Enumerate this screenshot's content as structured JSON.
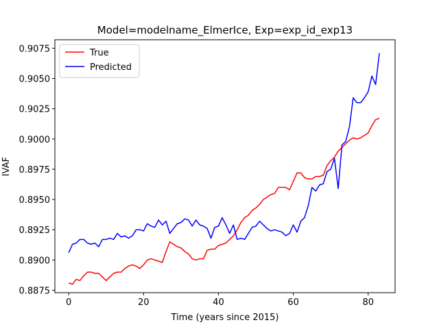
{
  "chart_data": {
    "type": "line",
    "title": "Model=modelname_ElmerIce, Exp=exp_id_exp13",
    "xlabel": "Time (years since 2015)",
    "ylabel": "IVAF",
    "xlim": [
      -3.7,
      87.2
    ],
    "ylim": [
      0.8873,
      0.9082
    ],
    "xticks": [
      0,
      20,
      40,
      60,
      80
    ],
    "xtick_labels": [
      "0",
      "20",
      "40",
      "60",
      "80"
    ],
    "yticks": [
      0.8875,
      0.89,
      0.8925,
      0.895,
      0.8975,
      0.9,
      0.9025,
      0.905,
      0.9075
    ],
    "ytick_labels": [
      "0.8875",
      "0.8900",
      "0.8925",
      "0.8950",
      "0.8975",
      "0.9000",
      "0.9025",
      "0.9050",
      "0.9075"
    ],
    "grid": false,
    "legend_position": "top-left",
    "series": [
      {
        "name": "True",
        "color": "#ff0000",
        "x": [
          0,
          1,
          2,
          3,
          4,
          5,
          6,
          7,
          8,
          9,
          10,
          11,
          12,
          13,
          14,
          15,
          16,
          17,
          18,
          19,
          20,
          21,
          22,
          23,
          24,
          25,
          26,
          27,
          28,
          29,
          30,
          31,
          32,
          33,
          34,
          35,
          36,
          37,
          38,
          39,
          40,
          41,
          42,
          43,
          44,
          45,
          46,
          47,
          48,
          49,
          50,
          51,
          52,
          53,
          54,
          55,
          56,
          57,
          58,
          59,
          60,
          61,
          62,
          63,
          64,
          65,
          66,
          67,
          68,
          69,
          70,
          71,
          72,
          73,
          74,
          75,
          76,
          77,
          78,
          79,
          80,
          81,
          82,
          83
        ],
        "y": [
          0.8881,
          0.888,
          0.8884,
          0.8883,
          0.8887,
          0.889,
          0.889,
          0.8889,
          0.8889,
          0.8886,
          0.8883,
          0.8886,
          0.8889,
          0.889,
          0.889,
          0.8893,
          0.8895,
          0.8896,
          0.8895,
          0.8893,
          0.8896,
          0.89,
          0.8901,
          0.89,
          0.8899,
          0.8898,
          0.8907,
          0.8915,
          0.8913,
          0.8911,
          0.891,
          0.8907,
          0.8905,
          0.8901,
          0.89,
          0.8901,
          0.8901,
          0.8908,
          0.8909,
          0.8909,
          0.8912,
          0.8913,
          0.8914,
          0.8917,
          0.892,
          0.8925,
          0.8931,
          0.8935,
          0.8937,
          0.8941,
          0.8943,
          0.8946,
          0.895,
          0.8952,
          0.8954,
          0.8955,
          0.896,
          0.896,
          0.896,
          0.8958,
          0.8965,
          0.8972,
          0.8972,
          0.8968,
          0.8967,
          0.8967,
          0.8969,
          0.8969,
          0.897,
          0.8978,
          0.8982,
          0.8985,
          0.899,
          0.8993,
          0.8996,
          0.8999,
          0.9001,
          0.9,
          0.9001,
          0.9003,
          0.9005,
          0.9011,
          0.9016,
          0.9017
        ]
      },
      {
        "name": "Predicted",
        "color": "#0000ff",
        "x": [
          0,
          1,
          2,
          3,
          4,
          5,
          6,
          7,
          8,
          9,
          10,
          11,
          12,
          13,
          14,
          15,
          16,
          17,
          18,
          19,
          20,
          21,
          22,
          23,
          24,
          25,
          26,
          27,
          28,
          29,
          30,
          31,
          32,
          33,
          34,
          35,
          36,
          37,
          38,
          39,
          40,
          41,
          42,
          43,
          44,
          45,
          46,
          47,
          48,
          49,
          50,
          51,
          52,
          53,
          54,
          55,
          56,
          57,
          58,
          59,
          60,
          61,
          62,
          63,
          64,
          65,
          66,
          67,
          68,
          69,
          70,
          71,
          72,
          73,
          74,
          75,
          76,
          77,
          78,
          79,
          80,
          81,
          82,
          83
        ],
        "y": [
          0.8906,
          0.8913,
          0.8914,
          0.8917,
          0.8917,
          0.8914,
          0.8913,
          0.8914,
          0.8911,
          0.8917,
          0.8917,
          0.8918,
          0.8917,
          0.8922,
          0.8919,
          0.892,
          0.8918,
          0.892,
          0.8925,
          0.8925,
          0.8924,
          0.893,
          0.8928,
          0.8927,
          0.8933,
          0.8929,
          0.8932,
          0.8922,
          0.8926,
          0.893,
          0.8931,
          0.8934,
          0.8933,
          0.8928,
          0.8933,
          0.8929,
          0.8928,
          0.8926,
          0.8918,
          0.8927,
          0.8928,
          0.8935,
          0.8929,
          0.8922,
          0.8929,
          0.8917,
          0.8918,
          0.8917,
          0.8922,
          0.8927,
          0.8928,
          0.8932,
          0.8929,
          0.8926,
          0.8924,
          0.8925,
          0.8924,
          0.8923,
          0.892,
          0.8922,
          0.8929,
          0.8923,
          0.8932,
          0.8935,
          0.8945,
          0.896,
          0.8957,
          0.8962,
          0.8963,
          0.8973,
          0.8975,
          0.8984,
          0.8959,
          0.8995,
          0.8998,
          0.901,
          0.9034,
          0.903,
          0.903,
          0.9034,
          0.9039,
          0.9052,
          0.9045,
          0.9071
        ]
      }
    ]
  }
}
